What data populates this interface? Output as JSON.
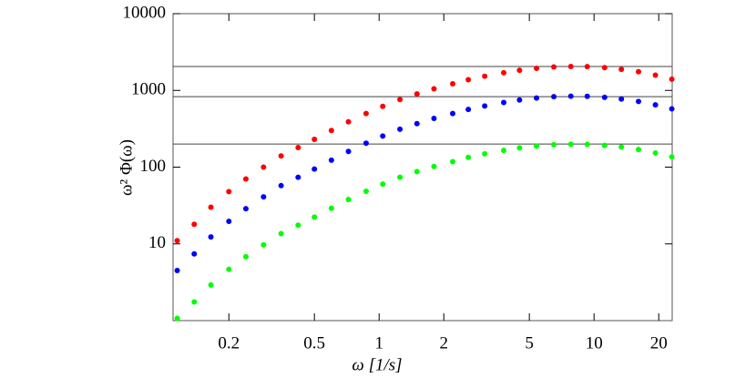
{
  "chart_data": {
    "type": "scatter",
    "x_label": "ω [1/s]",
    "y_label": "ω² Φ(ω)",
    "x_scale": "log",
    "y_scale": "log",
    "xlim": [
      0.11,
      23.1
    ],
    "ylim": [
      1,
      10000
    ],
    "xticks": [
      0.2,
      0.5,
      1,
      2,
      5,
      10,
      20
    ],
    "yticks": [
      10,
      100,
      1000,
      10000
    ],
    "hlines": [
      2050,
      830,
      200
    ],
    "x": [
      0.115,
      0.138,
      0.165,
      0.2,
      0.24,
      0.29,
      0.35,
      0.42,
      0.5,
      0.6,
      0.72,
      0.87,
      1.04,
      1.25,
      1.5,
      1.8,
      2.2,
      2.6,
      3.1,
      3.8,
      4.5,
      5.4,
      6.5,
      7.8,
      9.3,
      11.2,
      13.4,
      16.1,
      19.3,
      23
    ],
    "series": [
      {
        "color": "#ff0000",
        "values": [
          11,
          18,
          30,
          48,
          70,
          100,
          140,
          180,
          230,
          300,
          390,
          500,
          620,
          760,
          900,
          1050,
          1220,
          1380,
          1530,
          1700,
          1830,
          1940,
          2020,
          2050,
          2040,
          1980,
          1880,
          1750,
          1580,
          1400
        ]
      },
      {
        "color": "#0000ff",
        "values": [
          4.5,
          7.4,
          12.3,
          19.7,
          28.7,
          41,
          57.4,
          73.8,
          94.3,
          123,
          160,
          205,
          254,
          312,
          369,
          431,
          500,
          566,
          627,
          697,
          750,
          795,
          828,
          841,
          836,
          812,
          771,
          718,
          648,
          574
        ]
      },
      {
        "color": "#00ff00",
        "values": [
          1.07,
          1.75,
          2.91,
          4.66,
          6.8,
          9.7,
          13.6,
          17.5,
          22.3,
          29.1,
          37.9,
          48.5,
          60.2,
          73.8,
          87.4,
          102,
          118,
          134,
          149,
          165,
          178,
          188,
          196,
          199,
          198,
          192,
          183,
          170,
          153,
          136
        ]
      }
    ]
  }
}
